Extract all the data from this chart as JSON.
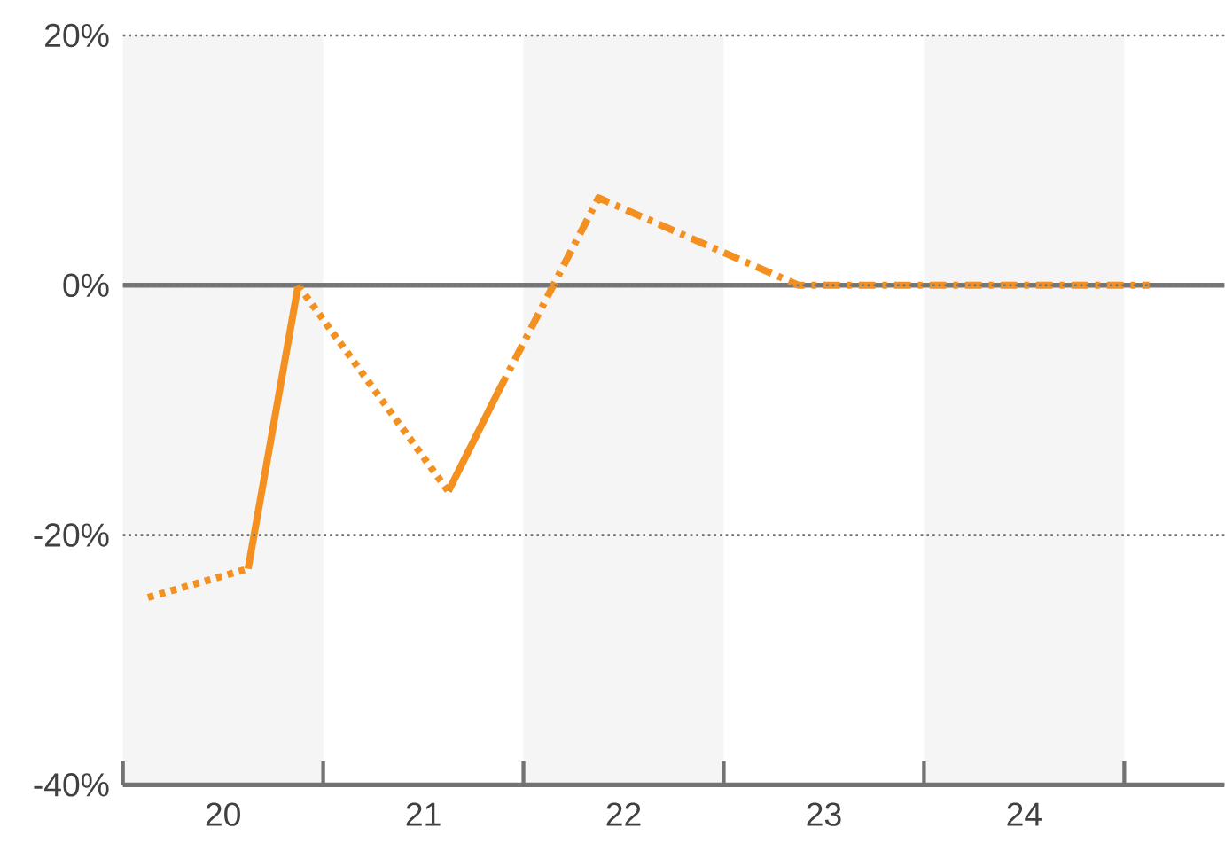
{
  "chart_data": {
    "type": "line",
    "xlim": [
      20,
      25.5
    ],
    "ylim": [
      -40,
      20
    ],
    "yticks": [
      {
        "value": -40,
        "label": "-40%"
      },
      {
        "value": -20,
        "label": "-20%"
      },
      {
        "value": 0,
        "label": "0%"
      },
      {
        "value": 20,
        "label": "20%"
      }
    ],
    "xticks": [
      {
        "value": 20,
        "label": null
      },
      {
        "value": 20.5,
        "label": "20"
      },
      {
        "value": 21,
        "label": null
      },
      {
        "value": 21.5,
        "label": "21"
      },
      {
        "value": 22,
        "label": null
      },
      {
        "value": 22.5,
        "label": "22"
      },
      {
        "value": 23,
        "label": null
      },
      {
        "value": 23.5,
        "label": "23"
      },
      {
        "value": 24,
        "label": null
      },
      {
        "value": 24.5,
        "label": "24"
      },
      {
        "value": 25,
        "label": null
      }
    ],
    "grid": "y",
    "marker": "none",
    "series": [
      {
        "color": "#f39020",
        "line_style": "dotted",
        "x": [
          20.125,
          20.625
        ],
        "values": [
          -25,
          -22.7
        ]
      },
      {
        "color": "#f39020",
        "line_style": "solid",
        "x": [
          20.625,
          20.875
        ],
        "values": [
          -22.7,
          0
        ]
      },
      {
        "color": "#f39020",
        "line_style": "dotted",
        "x": [
          20.875,
          21.625
        ],
        "values": [
          0,
          -16.5
        ]
      },
      {
        "color": "#f39020",
        "line_style": "solid",
        "x": [
          21.625,
          21.875
        ],
        "values": [
          -16.5,
          -8.5
        ]
      },
      {
        "color": "#f39020",
        "line_style": "dashdot",
        "x": [
          21.875,
          22.375,
          23.375,
          25.125
        ],
        "values": [
          -8.5,
          7,
          0,
          0
        ]
      }
    ],
    "bands": [
      {
        "axis": "x",
        "from": 20,
        "to": 21,
        "color": "#f5f5f5"
      },
      {
        "axis": "x",
        "from": 22,
        "to": 23,
        "color": "#f5f5f5"
      },
      {
        "axis": "x",
        "from": 24,
        "to": 25,
        "color": "#f5f5f5"
      }
    ],
    "ref_lines": [
      {
        "axis": "y",
        "value": 0,
        "color": "#777777"
      }
    ]
  }
}
